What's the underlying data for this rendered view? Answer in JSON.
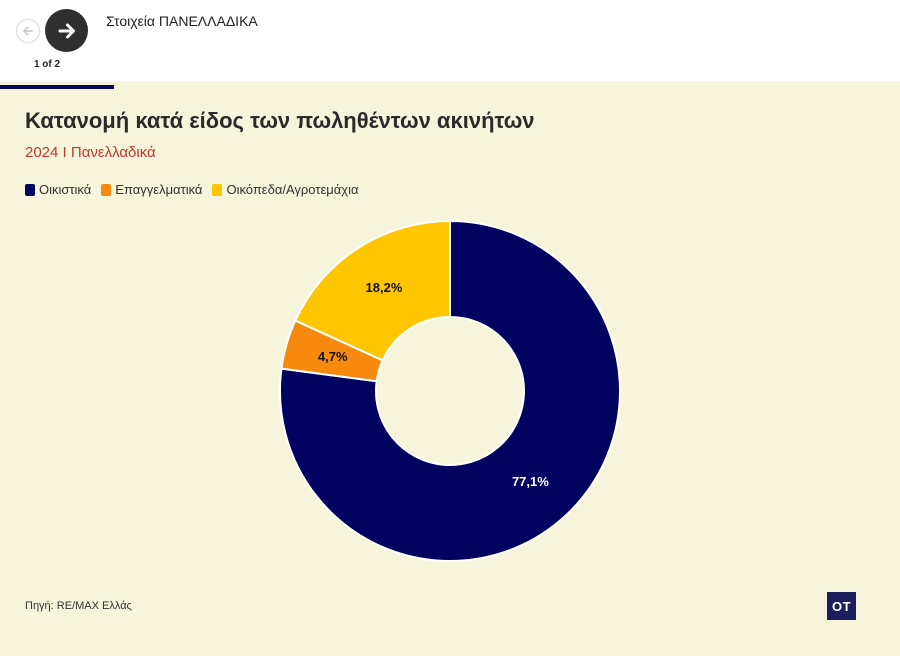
{
  "header": {
    "story_title": "Στοιχεία ΠΑΝΕΛΛΑΔΙΚΑ",
    "pager": "1 of 2",
    "prev_icon": "arrow-left-icon",
    "next_icon": "arrow-right-icon"
  },
  "colors": {
    "residential": "#020261",
    "commercial": "#f7890f",
    "land": "#fec503",
    "panel_bg": "#f6f4da",
    "subtitle": "#c0392b"
  },
  "chart_data": {
    "type": "pie",
    "donut": true,
    "title": "Κατανομή κατά είδος των πωληθέντων ακινήτων",
    "subtitle": "2024 Ι Πανελλαδικά",
    "legend_position": "top-left",
    "series": [
      {
        "name": "Οικιστικά",
        "value": 77.1,
        "label": "77,1%",
        "color": "#020261"
      },
      {
        "name": "Επαγγελματικά",
        "value": 4.7,
        "label": "4,7%",
        "color": "#f7890f"
      },
      {
        "name": "Οικόπεδα/Αγροτεμάχια",
        "value": 18.2,
        "label": "18,2%",
        "color": "#fec503"
      }
    ]
  },
  "footer": {
    "source": "Πηγή: RE/MAX Ελλάς",
    "logo_text": "OT"
  }
}
